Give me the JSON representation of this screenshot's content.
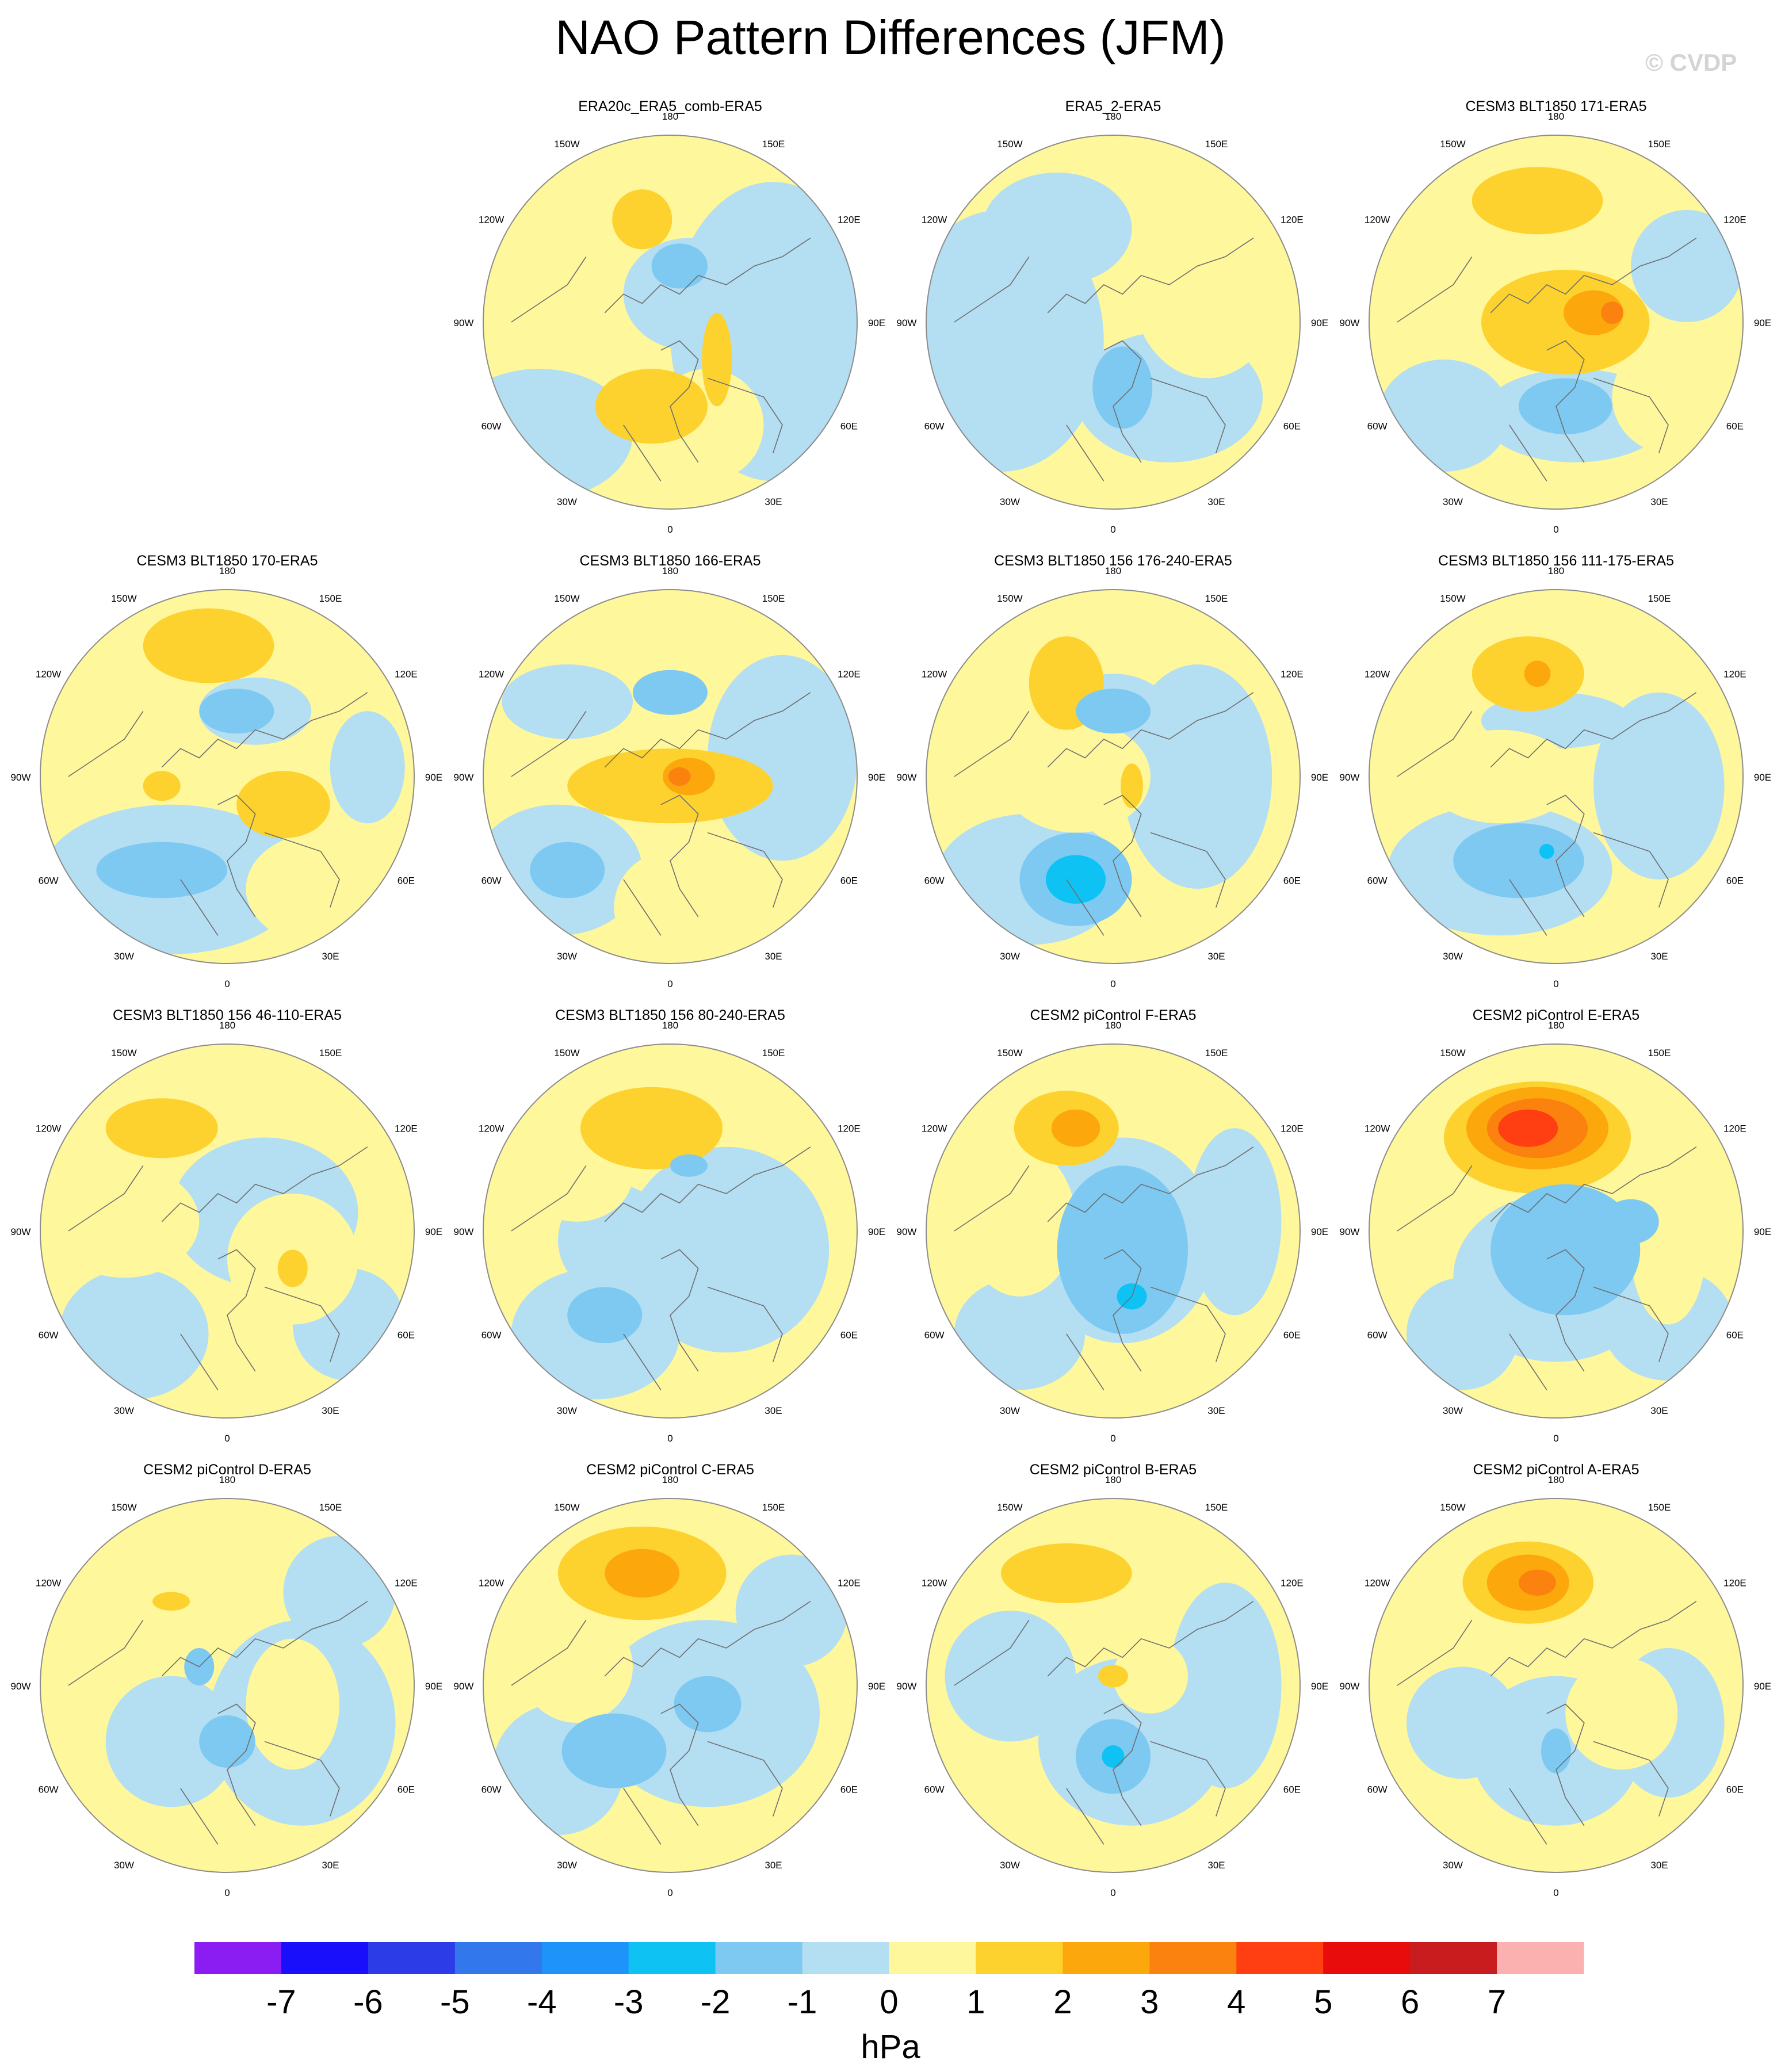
{
  "title": "NAO Pattern Differences (JFM)",
  "watermark": "© CVDP",
  "colors": {
    "ocean": "#b4def2",
    "land": "#fff79b",
    "pos1": "#fdd22e",
    "pos2": "#fca80d",
    "pos3": "#fc8210",
    "pos4": "#ff3e12",
    "neg1": "#7dc9f2",
    "neg2": "#0ec3f4",
    "coast": "#6e6e6e",
    "grid_rim": "#8c8c8c"
  },
  "longitude_labels": {
    "180": "180",
    "150E": "150E",
    "120E": "120E",
    "90E": "90E",
    "60E": "60E",
    "30E": "30E",
    "0": "0",
    "30W": "30W",
    "60W": "60W",
    "90W": "90W",
    "120W": "120W",
    "150W": "150W"
  },
  "panels": [
    {
      "title": "ERA20c_ERA5_comb-ERA5"
    },
    {
      "title": "ERA5_2-ERA5"
    },
    {
      "title": "CESM3 BLT1850 171-ERA5"
    },
    {
      "title": "CESM3 BLT1850 170-ERA5"
    },
    {
      "title": "CESM3 BLT1850 166-ERA5"
    },
    {
      "title": "CESM3 BLT1850 156 176-240-ERA5"
    },
    {
      "title": "CESM3 BLT1850 156 111-175-ERA5"
    },
    {
      "title": "CESM3 BLT1850 156 46-110-ERA5"
    },
    {
      "title": "CESM3 BLT1850 156 80-240-ERA5"
    },
    {
      "title": "CESM2 piControl F-ERA5"
    },
    {
      "title": "CESM2 piControl E-ERA5"
    },
    {
      "title": "CESM2 piControl D-ERA5"
    },
    {
      "title": "CESM2 piControl C-ERA5"
    },
    {
      "title": "CESM2 piControl B-ERA5"
    },
    {
      "title": "CESM2 piControl A-ERA5"
    }
  ],
  "colorbar": {
    "unit": "hPa",
    "colors": [
      "#8b1df2",
      "#1a0ffa",
      "#2c3de8",
      "#3377ec",
      "#1e94fa",
      "#0ec3f4",
      "#7dc9f2",
      "#b4def2",
      "#fff79b",
      "#fdd22e",
      "#fca80d",
      "#fc8210",
      "#ff3e12",
      "#e90c0d",
      "#c81c1e",
      "#fcb1b1"
    ],
    "labels": [
      "-7",
      "-6",
      "-5",
      "-4",
      "-3",
      "-2",
      "-1",
      "0",
      "1",
      "2",
      "3",
      "4",
      "5",
      "6",
      "7"
    ]
  }
}
